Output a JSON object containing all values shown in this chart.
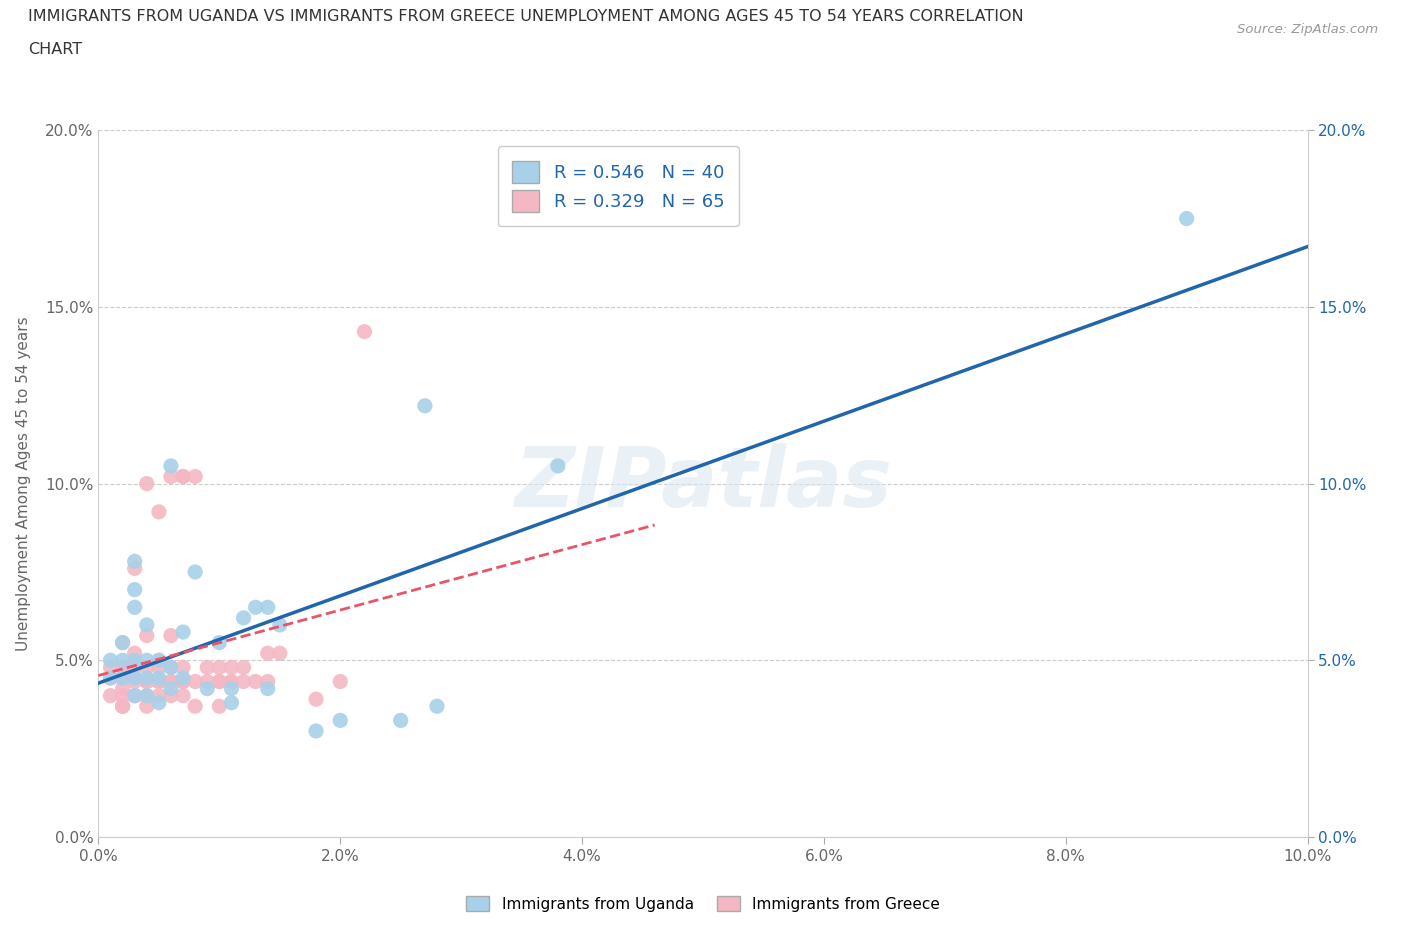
{
  "title_line1": "IMMIGRANTS FROM UGANDA VS IMMIGRANTS FROM GREECE UNEMPLOYMENT AMONG AGES 45 TO 54 YEARS CORRELATION",
  "title_line2": "CHART",
  "source_text": "Source: ZipAtlas.com",
  "ylabel": "Unemployment Among Ages 45 to 54 years",
  "xlim": [
    0.0,
    0.1
  ],
  "ylim": [
    0.0,
    0.2
  ],
  "xticks": [
    0.0,
    0.02,
    0.04,
    0.06,
    0.08,
    0.1
  ],
  "yticks": [
    0.0,
    0.05,
    0.1,
    0.15,
    0.2
  ],
  "xtick_labels": [
    "0.0%",
    "2.0%",
    "4.0%",
    "6.0%",
    "8.0%",
    "10.0%"
  ],
  "ytick_labels": [
    "0.0%",
    "5.0%",
    "10.0%",
    "15.0%",
    "20.0%"
  ],
  "uganda_color": "#a8d0e8",
  "greece_color": "#f4b8c4",
  "uganda_line_color": "#2166ac",
  "greece_line_color": "#e8556a",
  "R_uganda": 0.546,
  "N_uganda": 40,
  "R_greece": 0.329,
  "N_greece": 65,
  "uganda_scatter": [
    [
      0.001,
      0.045
    ],
    [
      0.001,
      0.05
    ],
    [
      0.002,
      0.045
    ],
    [
      0.002,
      0.05
    ],
    [
      0.002,
      0.055
    ],
    [
      0.003,
      0.04
    ],
    [
      0.003,
      0.045
    ],
    [
      0.003,
      0.05
    ],
    [
      0.003,
      0.065
    ],
    [
      0.003,
      0.07
    ],
    [
      0.003,
      0.078
    ],
    [
      0.004,
      0.04
    ],
    [
      0.004,
      0.045
    ],
    [
      0.004,
      0.05
    ],
    [
      0.004,
      0.06
    ],
    [
      0.005,
      0.038
    ],
    [
      0.005,
      0.045
    ],
    [
      0.005,
      0.05
    ],
    [
      0.006,
      0.042
    ],
    [
      0.006,
      0.048
    ],
    [
      0.006,
      0.105
    ],
    [
      0.007,
      0.045
    ],
    [
      0.007,
      0.058
    ],
    [
      0.008,
      0.075
    ],
    [
      0.009,
      0.042
    ],
    [
      0.01,
      0.055
    ],
    [
      0.011,
      0.038
    ],
    [
      0.011,
      0.042
    ],
    [
      0.012,
      0.062
    ],
    [
      0.013,
      0.065
    ],
    [
      0.014,
      0.042
    ],
    [
      0.014,
      0.065
    ],
    [
      0.015,
      0.06
    ],
    [
      0.018,
      0.03
    ],
    [
      0.02,
      0.033
    ],
    [
      0.025,
      0.033
    ],
    [
      0.027,
      0.122
    ],
    [
      0.028,
      0.037
    ],
    [
      0.038,
      0.105
    ],
    [
      0.09,
      0.175
    ]
  ],
  "greece_scatter": [
    [
      0.001,
      0.045
    ],
    [
      0.001,
      0.048
    ],
    [
      0.001,
      0.04
    ],
    [
      0.002,
      0.037
    ],
    [
      0.002,
      0.04
    ],
    [
      0.002,
      0.045
    ],
    [
      0.002,
      0.048
    ],
    [
      0.002,
      0.055
    ],
    [
      0.002,
      0.037
    ],
    [
      0.002,
      0.042
    ],
    [
      0.002,
      0.045
    ],
    [
      0.002,
      0.048
    ],
    [
      0.003,
      0.04
    ],
    [
      0.003,
      0.045
    ],
    [
      0.003,
      0.048
    ],
    [
      0.003,
      0.052
    ],
    [
      0.003,
      0.076
    ],
    [
      0.003,
      0.04
    ],
    [
      0.003,
      0.044
    ],
    [
      0.004,
      0.037
    ],
    [
      0.004,
      0.04
    ],
    [
      0.004,
      0.044
    ],
    [
      0.004,
      0.057
    ],
    [
      0.004,
      0.1
    ],
    [
      0.004,
      0.044
    ],
    [
      0.004,
      0.048
    ],
    [
      0.005,
      0.04
    ],
    [
      0.005,
      0.044
    ],
    [
      0.005,
      0.05
    ],
    [
      0.005,
      0.044
    ],
    [
      0.005,
      0.048
    ],
    [
      0.005,
      0.092
    ],
    [
      0.006,
      0.04
    ],
    [
      0.006,
      0.044
    ],
    [
      0.006,
      0.048
    ],
    [
      0.006,
      0.057
    ],
    [
      0.006,
      0.102
    ],
    [
      0.006,
      0.044
    ],
    [
      0.007,
      0.04
    ],
    [
      0.007,
      0.044
    ],
    [
      0.007,
      0.048
    ],
    [
      0.007,
      0.102
    ],
    [
      0.007,
      0.044
    ],
    [
      0.007,
      0.102
    ],
    [
      0.008,
      0.037
    ],
    [
      0.008,
      0.044
    ],
    [
      0.008,
      0.102
    ],
    [
      0.009,
      0.044
    ],
    [
      0.009,
      0.048
    ],
    [
      0.01,
      0.037
    ],
    [
      0.01,
      0.044
    ],
    [
      0.01,
      0.048
    ],
    [
      0.01,
      0.044
    ],
    [
      0.011,
      0.044
    ],
    [
      0.011,
      0.048
    ],
    [
      0.011,
      0.044
    ],
    [
      0.012,
      0.044
    ],
    [
      0.012,
      0.048
    ],
    [
      0.013,
      0.044
    ],
    [
      0.014,
      0.044
    ],
    [
      0.014,
      0.052
    ],
    [
      0.015,
      0.052
    ],
    [
      0.018,
      0.039
    ],
    [
      0.02,
      0.044
    ],
    [
      0.022,
      0.143
    ]
  ],
  "watermark": "ZIPatlas",
  "legend_label_uganda": "Immigrants from Uganda",
  "legend_label_greece": "Immigrants from Greece"
}
